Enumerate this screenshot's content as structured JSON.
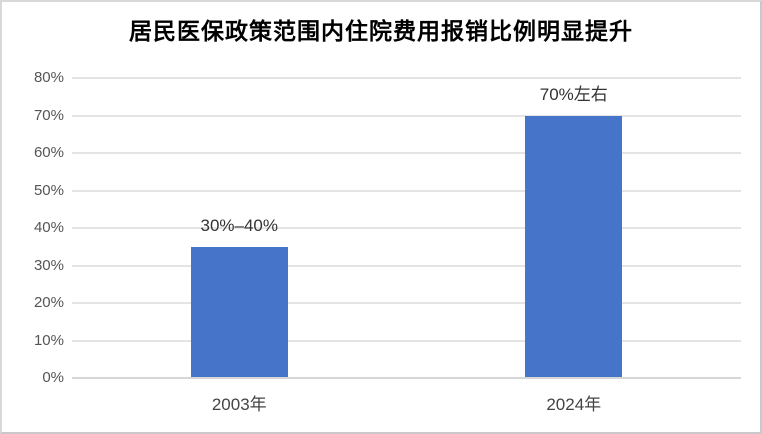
{
  "chart_data": {
    "type": "bar",
    "title": "居民医保政策范围内住院费用报销比例明显提升",
    "categories": [
      "2003年",
      "2024年"
    ],
    "values": [
      35,
      70
    ],
    "data_labels": [
      "30%–40%",
      "70%左右"
    ],
    "xlabel": "",
    "ylabel": "",
    "ylim": [
      0,
      80
    ],
    "ytick_interval": 10,
    "ytick_labels": [
      "0%",
      "10%",
      "20%",
      "30%",
      "40%",
      "50%",
      "60%",
      "70%",
      "80%"
    ],
    "grid": true,
    "legend": "none",
    "colors": {
      "bar": "#4674C8",
      "gridline": "#e4e4e4",
      "axis_line": "#d6d6d6",
      "tick_label": "#555555",
      "data_label": "#333333",
      "category_label": "#444444",
      "title": "#000000",
      "background": "#ffffff"
    }
  }
}
